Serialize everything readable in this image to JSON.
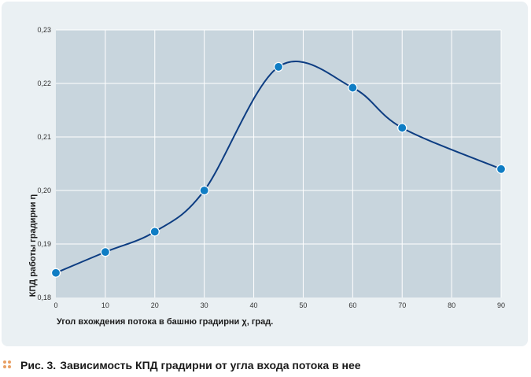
{
  "chart_data": {
    "type": "line",
    "title": "",
    "xlabel": "Угол вхождения потока в башню градирни χ, град.",
    "ylabel": "КПД работы градирни η",
    "x": [
      0,
      10,
      20,
      30,
      45,
      60,
      70,
      90
    ],
    "series": [
      {
        "values": [
          0.1846,
          0.1885,
          0.1923,
          0.2,
          0.2231,
          0.2192,
          0.2117,
          0.204
        ]
      }
    ],
    "xlim": [
      0,
      90
    ],
    "ylim": [
      0.18,
      0.23
    ],
    "x_ticks": [
      "0",
      "10",
      "20",
      "30",
      "40",
      "50",
      "60",
      "70",
      "80",
      "90"
    ],
    "y_ticks": [
      "0,18",
      "0,19",
      "0,20",
      "0,21",
      "0,22",
      "0,23"
    ],
    "grid": true,
    "colors": {
      "plot_background": "#c8d5dd",
      "line": "#0d3d82",
      "marker": "#0f7dc4",
      "panel": "#eaf0f3",
      "caption_dots": "#e8a064"
    }
  },
  "caption": {
    "number": "Рис. 3.",
    "text": "Зависимость КПД градирни от угла входа потока в нее",
    "icon": "dots-icon"
  }
}
